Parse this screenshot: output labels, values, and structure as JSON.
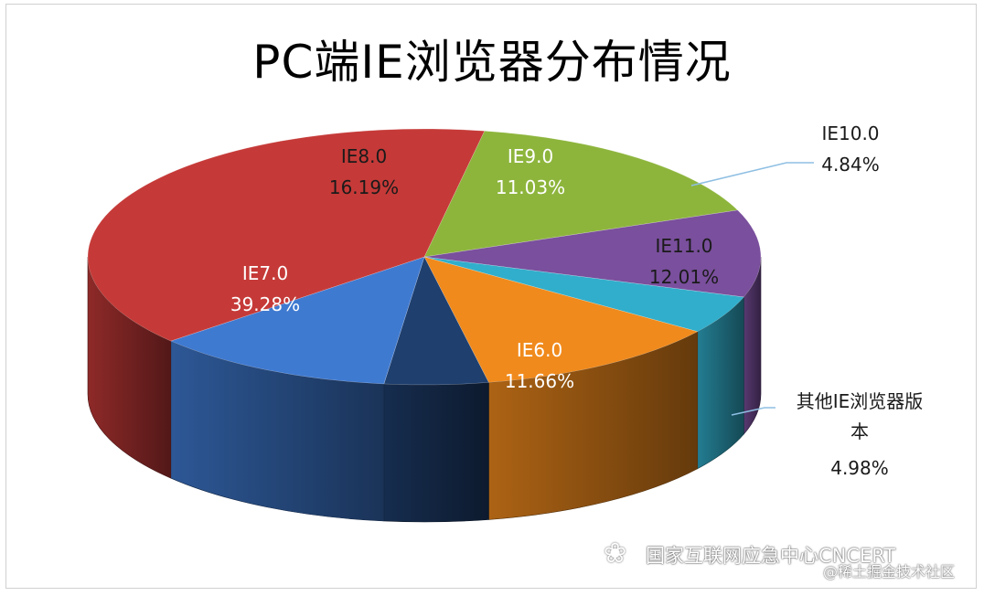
{
  "chart_data": {
    "type": "pie",
    "title": "PC端IE浏览器分布情况",
    "slices": [
      {
        "label": "IE8.0",
        "value": 16.19,
        "value_text": "16.19%",
        "color": "#8db53c"
      },
      {
        "label": "IE9.0",
        "value": 11.03,
        "value_text": "11.03%",
        "color": "#7a4f9d"
      },
      {
        "label": "IE10.0",
        "value": 4.84,
        "value_text": "4.84%",
        "color": "#31aecb"
      },
      {
        "label": "IE11.0",
        "value": 12.01,
        "value_text": "12.01%",
        "color": "#f08a1c"
      },
      {
        "label": "其他IE浏览器版本",
        "value": 4.98,
        "value_text": "4.98%",
        "color": "#1f3f6e"
      },
      {
        "label": "IE6.0",
        "value": 11.66,
        "value_text": "11.66%",
        "color": "#3f7ad1"
      },
      {
        "label": "IE7.0",
        "value": 39.28,
        "value_text": "39.28%",
        "color": "#c53a38"
      }
    ],
    "outside_labels": [
      {
        "lines": [
          "IE10.0",
          "4.84%"
        ],
        "line_color": "#8fbfe3"
      },
      {
        "lines": [
          "其他IE浏览器版",
          "本",
          "4.98%"
        ],
        "line_color": "#8fbfe3"
      }
    ]
  },
  "watermark": {
    "line1": "国家互联网应急中心CNCERT",
    "line2": "@稀土掘金技术社区",
    "icon": "wechat-icon"
  }
}
